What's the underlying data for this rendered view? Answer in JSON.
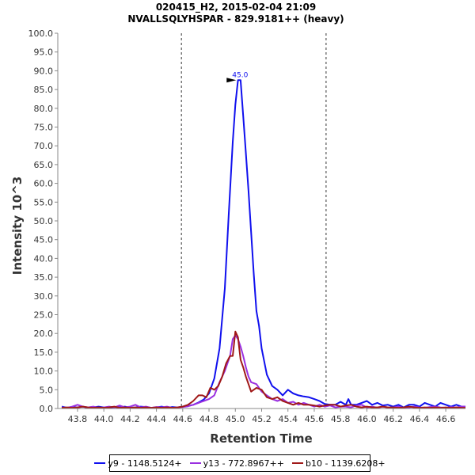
{
  "chart_data": {
    "type": "line",
    "title": "020415_H2, 2015-02-04 21:09",
    "subtitle": "NVALLSQLYHSPAR - 829.9181++ (heavy)",
    "xlabel": "Retention Time",
    "ylabel": "Intensity 10^3",
    "xlim": [
      43.65,
      46.75
    ],
    "ylim": [
      0,
      100
    ],
    "x_ticks": [
      "43.8",
      "44.0",
      "44.2",
      "44.4",
      "44.6",
      "44.8",
      "45.0",
      "45.2",
      "45.4",
      "45.6",
      "45.8",
      "46.0",
      "46.2",
      "46.4",
      "46.6"
    ],
    "y_ticks": [
      "0.0",
      "5.0",
      "10.0",
      "15.0",
      "20.0",
      "25.0",
      "30.0",
      "35.0",
      "40.0",
      "45.0",
      "50.0",
      "55.0",
      "60.0",
      "65.0",
      "70.0",
      "75.0",
      "80.0",
      "85.0",
      "90.0",
      "95.0",
      "100.0"
    ],
    "integration_bounds": [
      44.59,
      45.69
    ],
    "peak_annotation": {
      "x": 45.0,
      "y": 87.5,
      "label": "45.0"
    },
    "series": [
      {
        "name": "y9 - 1148.5124+",
        "color": "#1010ee",
        "x": [
          43.68,
          43.72,
          43.76,
          43.8,
          43.84,
          43.88,
          43.92,
          43.96,
          44.0,
          44.04,
          44.08,
          44.12,
          44.16,
          44.2,
          44.24,
          44.28,
          44.32,
          44.36,
          44.4,
          44.44,
          44.48,
          44.52,
          44.56,
          44.6,
          44.64,
          44.68,
          44.72,
          44.76,
          44.8,
          44.84,
          44.88,
          44.92,
          44.95,
          44.98,
          45.0,
          45.02,
          45.04,
          45.06,
          45.08,
          45.1,
          45.12,
          45.14,
          45.16,
          45.18,
          45.2,
          45.24,
          45.28,
          45.32,
          45.36,
          45.4,
          45.44,
          45.48,
          45.52,
          45.56,
          45.6,
          45.64,
          45.68,
          45.72,
          45.76,
          45.8,
          45.84,
          45.86,
          45.88,
          45.92,
          45.96,
          46.0,
          46.04,
          46.08,
          46.12,
          46.16,
          46.2,
          46.24,
          46.28,
          46.32,
          46.36,
          46.4,
          46.44,
          46.48,
          46.52,
          46.56,
          46.6,
          46.64,
          46.68,
          46.72,
          46.75
        ],
        "values": [
          0.5,
          0.2,
          0.4,
          0.3,
          0.5,
          0.2,
          0.3,
          0.5,
          0.3,
          0.2,
          0.4,
          0.3,
          0.5,
          0.2,
          0.3,
          0.5,
          0.4,
          0.2,
          0.3,
          0.5,
          0.2,
          0.4,
          0.3,
          0.5,
          0.7,
          1.0,
          1.6,
          2.4,
          4.0,
          8.0,
          16.0,
          32.0,
          52.0,
          71.0,
          81.0,
          87.5,
          87.5,
          78.0,
          68.0,
          58.0,
          47.0,
          36.0,
          26.0,
          22.0,
          16.0,
          9.0,
          6.0,
          5.0,
          3.5,
          5.0,
          4.0,
          3.5,
          3.2,
          3.0,
          2.5,
          2.0,
          1.2,
          1.0,
          1.0,
          1.8,
          1.0,
          2.5,
          1.0,
          1.0,
          1.5,
          2.0,
          1.0,
          1.5,
          0.8,
          1.0,
          0.5,
          1.0,
          0.3,
          1.0,
          1.0,
          0.5,
          1.5,
          1.0,
          0.5,
          1.5,
          1.0,
          0.5,
          1.0,
          0.5,
          0.5
        ]
      },
      {
        "name": "y13 - 772.8967++",
        "color": "#9a30e0",
        "x": [
          43.68,
          43.72,
          43.76,
          43.8,
          43.84,
          43.88,
          43.92,
          43.96,
          44.0,
          44.04,
          44.08,
          44.12,
          44.16,
          44.2,
          44.24,
          44.28,
          44.32,
          44.36,
          44.4,
          44.44,
          44.48,
          44.52,
          44.56,
          44.6,
          44.64,
          44.68,
          44.72,
          44.76,
          44.8,
          44.84,
          44.88,
          44.92,
          44.96,
          44.98,
          45.0,
          45.02,
          45.04,
          45.06,
          45.08,
          45.1,
          45.12,
          45.16,
          45.2,
          45.24,
          45.28,
          45.32,
          45.36,
          45.4,
          45.44,
          45.48,
          45.52,
          45.56,
          45.6,
          45.64,
          45.68,
          45.72,
          45.76,
          45.8,
          45.84,
          45.88,
          45.92,
          45.96,
          46.0,
          46.04,
          46.08,
          46.12,
          46.16,
          46.2,
          46.24,
          46.28,
          46.32,
          46.36,
          46.4,
          46.44,
          46.48,
          46.52,
          46.56,
          46.6,
          46.64,
          46.68,
          46.72,
          46.75
        ],
        "values": [
          0.3,
          0.2,
          0.5,
          1.0,
          0.5,
          0.3,
          0.5,
          0.2,
          0.3,
          0.5,
          0.3,
          0.8,
          0.3,
          0.5,
          1.0,
          0.3,
          0.5,
          0.2,
          0.4,
          0.3,
          0.5,
          0.2,
          0.3,
          0.4,
          0.6,
          1.0,
          1.5,
          2.0,
          2.5,
          3.5,
          7.0,
          10.0,
          14.0,
          18.5,
          19.5,
          18.5,
          16.5,
          14.0,
          11.0,
          8.5,
          7.0,
          6.5,
          4.5,
          3.5,
          2.5,
          2.0,
          2.5,
          1.5,
          1.8,
          1.0,
          1.5,
          1.0,
          0.5,
          1.0,
          0.5,
          0.8,
          0.3,
          0.5,
          0.5,
          0.3,
          0.8,
          1.0,
          0.3,
          0.5,
          0.2,
          0.5,
          0.3,
          0.3,
          0.5,
          0.2,
          0.3,
          0.5,
          0.3,
          0.2,
          0.4,
          0.5,
          0.3,
          0.2,
          0.4,
          0.3,
          0.5,
          0.5
        ]
      },
      {
        "name": "b10 - 1139.6208+",
        "color": "#a01818",
        "x": [
          43.68,
          43.72,
          43.76,
          43.8,
          43.84,
          43.88,
          43.92,
          43.96,
          44.0,
          44.04,
          44.08,
          44.12,
          44.16,
          44.2,
          44.24,
          44.28,
          44.32,
          44.36,
          44.4,
          44.44,
          44.48,
          44.52,
          44.56,
          44.6,
          44.64,
          44.68,
          44.72,
          44.75,
          44.78,
          44.81,
          44.84,
          44.87,
          44.9,
          44.93,
          44.96,
          44.98,
          45.0,
          45.02,
          45.04,
          45.06,
          45.08,
          45.1,
          45.12,
          45.16,
          45.2,
          45.24,
          45.28,
          45.32,
          45.36,
          45.4,
          45.44,
          45.48,
          45.52,
          45.56,
          45.6,
          45.64,
          45.68,
          45.72,
          45.76,
          45.8,
          45.84,
          45.88,
          45.92,
          45.96,
          46.0,
          46.04,
          46.08,
          46.12,
          46.16,
          46.2,
          46.24,
          46.28,
          46.32,
          46.36,
          46.4,
          46.44,
          46.48,
          46.52,
          46.56,
          46.6,
          46.64,
          46.68,
          46.72,
          46.75
        ],
        "values": [
          0.2,
          0.3,
          0.2,
          0.3,
          0.5,
          0.3,
          0.2,
          0.3,
          0.2,
          0.3,
          0.5,
          0.2,
          0.3,
          0.2,
          0.3,
          0.2,
          0.3,
          0.2,
          0.3,
          0.2,
          0.3,
          0.2,
          0.3,
          0.5,
          1.0,
          2.0,
          3.5,
          3.5,
          3.0,
          5.5,
          5.0,
          6.0,
          8.5,
          12.0,
          14.0,
          14.0,
          20.5,
          19.0,
          13.0,
          11.0,
          8.5,
          6.5,
          4.5,
          5.5,
          5.0,
          3.0,
          2.5,
          3.0,
          2.0,
          1.5,
          1.0,
          1.5,
          1.0,
          1.0,
          0.8,
          0.5,
          0.8,
          1.0,
          1.0,
          0.5,
          0.8,
          1.0,
          0.5,
          0.3,
          0.5,
          0.3,
          0.3,
          0.5,
          0.3,
          0.3,
          0.2,
          0.3,
          0.5,
          0.3,
          0.2,
          0.3,
          0.2,
          0.3,
          0.2,
          0.3,
          0.2,
          0.3,
          0.2,
          0.2
        ]
      }
    ]
  }
}
